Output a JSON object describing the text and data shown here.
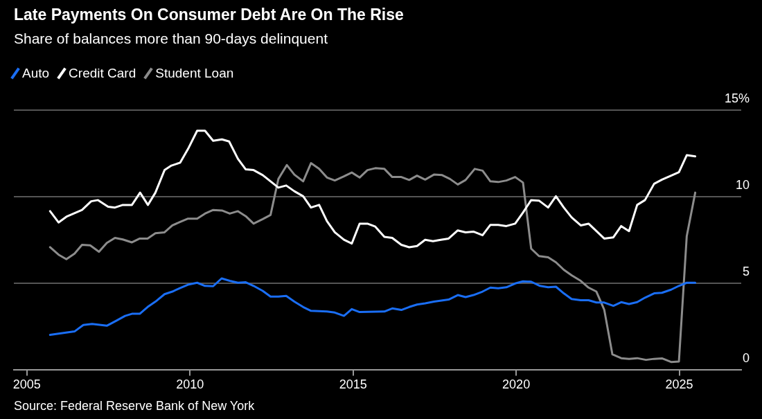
{
  "chart_data": {
    "type": "line",
    "title": "Late Payments On Consumer Debt Are On The Rise",
    "subtitle": "Share of balances more than 90-days delinquent",
    "xlim": [
      2004.6,
      2026.9
    ],
    "xticks": [
      2005,
      2010,
      2015,
      2020,
      2025
    ],
    "ylim": [
      0,
      15
    ],
    "yticks": [
      0,
      5,
      10,
      {
        "value": 15,
        "label": "15%"
      }
    ],
    "grid": "y",
    "legend": "top left",
    "marker": "none",
    "line_style": "solid",
    "annotations": [
      "Source: Federal Reserve Bank of New York"
    ],
    "series": [
      {
        "name": "Auto",
        "color": "#1a6ef5",
        "x": [
          2005.71,
          2006.46,
          2006.73,
          2007.0,
          2007.45,
          2007.73,
          2008.01,
          2008.22,
          2008.46,
          2008.7,
          2008.94,
          2009.22,
          2009.46,
          2009.7,
          2009.94,
          2010.22,
          2010.46,
          2010.71,
          2010.97,
          2011.22,
          2011.47,
          2011.71,
          2011.95,
          2012.23,
          2012.47,
          2012.71,
          2012.95,
          2013.2,
          2013.47,
          2013.71,
          2014.2,
          2014.44,
          2014.72,
          2014.96,
          2015.2,
          2015.96,
          2016.2,
          2016.48,
          2016.72,
          2016.96,
          2017.21,
          2017.48,
          2017.93,
          2018.21,
          2018.45,
          2018.69,
          2018.97,
          2019.21,
          2019.45,
          2019.7,
          2019.97,
          2020.21,
          2020.46,
          2020.73,
          2020.98,
          2021.22,
          2021.46,
          2021.7,
          2021.98,
          2022.22,
          2022.46,
          2022.7,
          2022.98,
          2023.22,
          2023.46,
          2023.71,
          2023.95,
          2024.23,
          2024.47,
          2024.75,
          2024.99,
          2025.23,
          2025.49
        ],
        "values": [
          2.03,
          2.23,
          2.6,
          2.66,
          2.56,
          2.84,
          3.13,
          3.25,
          3.25,
          3.64,
          3.95,
          4.38,
          4.53,
          4.74,
          4.93,
          5.04,
          4.86,
          4.84,
          5.29,
          5.15,
          5.04,
          5.07,
          4.86,
          4.57,
          4.24,
          4.24,
          4.28,
          3.95,
          3.64,
          3.42,
          3.38,
          3.32,
          3.13,
          3.52,
          3.35,
          3.38,
          3.56,
          3.47,
          3.64,
          3.78,
          3.85,
          3.95,
          4.07,
          4.33,
          4.21,
          4.33,
          4.53,
          4.76,
          4.72,
          4.78,
          5.0,
          5.12,
          5.1,
          4.86,
          4.78,
          4.81,
          4.43,
          4.1,
          4.03,
          4.03,
          3.9,
          3.9,
          3.71,
          3.92,
          3.81,
          3.92,
          4.18,
          4.43,
          4.46,
          4.64,
          4.86,
          5.04,
          5.04
        ]
      },
      {
        "name": "Credit Card",
        "color": "#ffffff",
        "x": [
          2005.71,
          2005.97,
          2006.21,
          2006.69,
          2006.97,
          2007.18,
          2007.49,
          2007.7,
          2007.94,
          2008.22,
          2008.47,
          2008.71,
          2008.94,
          2009.22,
          2009.43,
          2009.7,
          2009.94,
          2010.22,
          2010.46,
          2010.71,
          2010.98,
          2011.2,
          2011.47,
          2011.71,
          2011.95,
          2012.23,
          2012.71,
          2012.95,
          2013.2,
          2013.47,
          2013.71,
          2013.96,
          2014.2,
          2014.44,
          2014.72,
          2014.96,
          2015.2,
          2015.44,
          2015.68,
          2015.96,
          2016.2,
          2016.48,
          2016.72,
          2016.96,
          2017.21,
          2017.45,
          2017.69,
          2017.93,
          2018.21,
          2018.45,
          2018.69,
          2018.97,
          2019.21,
          2019.45,
          2019.7,
          2019.97,
          2020.21,
          2020.46,
          2020.7,
          2020.98,
          2021.22,
          2021.46,
          2021.7,
          2021.98,
          2022.22,
          2022.46,
          2022.7,
          2022.98,
          2023.22,
          2023.46,
          2023.71,
          2023.95,
          2024.23,
          2024.47,
          2024.75,
          2024.99,
          2025.23,
          2025.49
        ],
        "values": [
          9.17,
          8.52,
          8.85,
          9.24,
          9.74,
          9.81,
          9.43,
          9.38,
          9.53,
          9.53,
          10.24,
          9.53,
          10.24,
          11.54,
          11.8,
          11.97,
          12.76,
          13.81,
          13.81,
          13.23,
          13.31,
          13.19,
          12.19,
          11.58,
          11.54,
          11.25,
          10.53,
          10.65,
          10.32,
          10.03,
          9.38,
          9.53,
          8.59,
          7.95,
          7.52,
          7.3,
          8.45,
          8.45,
          8.28,
          7.69,
          7.63,
          7.23,
          7.09,
          7.16,
          7.52,
          7.44,
          7.52,
          7.59,
          8.06,
          7.95,
          7.99,
          7.78,
          8.38,
          8.38,
          8.31,
          8.45,
          9.09,
          9.81,
          9.78,
          9.38,
          10.03,
          9.38,
          8.81,
          8.35,
          8.45,
          8.02,
          7.59,
          7.66,
          8.31,
          8.02,
          9.53,
          9.81,
          10.75,
          10.99,
          11.22,
          11.42,
          12.4,
          12.33
        ]
      },
      {
        "name": "Student Loan",
        "color": "#8c8c8c",
        "x": [
          2005.71,
          2005.97,
          2006.21,
          2006.46,
          2006.69,
          2006.94,
          2007.21,
          2007.45,
          2007.7,
          2007.94,
          2008.22,
          2008.46,
          2008.7,
          2008.94,
          2009.22,
          2009.46,
          2009.7,
          2009.94,
          2010.22,
          2010.46,
          2010.71,
          2010.98,
          2011.22,
          2011.47,
          2011.71,
          2011.95,
          2012.23,
          2012.47,
          2012.71,
          2012.97,
          2013.2,
          2013.47,
          2013.71,
          2013.96,
          2014.2,
          2014.44,
          2014.72,
          2014.96,
          2015.2,
          2015.44,
          2015.68,
          2015.96,
          2016.2,
          2016.48,
          2016.72,
          2016.96,
          2017.21,
          2017.48,
          2017.73,
          2017.97,
          2018.21,
          2018.45,
          2018.73,
          2018.97,
          2019.21,
          2019.45,
          2019.7,
          2019.97,
          2020.21,
          2020.46,
          2020.7,
          2020.98,
          2021.22,
          2021.46,
          2021.7,
          2021.98,
          2022.22,
          2022.46,
          2022.7,
          2022.95,
          2023.22,
          2023.46,
          2023.71,
          2023.98,
          2024.23,
          2024.47,
          2024.75,
          2024.99,
          2025.23,
          2025.49
        ],
        "values": [
          7.09,
          6.66,
          6.4,
          6.72,
          7.23,
          7.2,
          6.83,
          7.34,
          7.63,
          7.54,
          7.37,
          7.59,
          7.59,
          7.9,
          7.95,
          8.35,
          8.55,
          8.74,
          8.74,
          9.03,
          9.24,
          9.21,
          9.03,
          9.17,
          8.88,
          8.45,
          8.71,
          8.95,
          11.03,
          11.83,
          11.28,
          10.89,
          11.94,
          11.61,
          11.11,
          10.94,
          11.18,
          11.4,
          11.11,
          11.54,
          11.65,
          11.61,
          11.14,
          11.14,
          10.97,
          11.22,
          10.99,
          11.28,
          11.25,
          11.03,
          10.71,
          10.97,
          11.61,
          11.51,
          10.89,
          10.85,
          10.94,
          11.14,
          10.82,
          7.01,
          6.58,
          6.51,
          6.22,
          5.79,
          5.47,
          5.15,
          4.76,
          4.53,
          3.49,
          0.91,
          0.69,
          0.65,
          0.69,
          0.59,
          0.65,
          0.68,
          0.47,
          0.5,
          7.73,
          10.24
        ]
      }
    ]
  }
}
